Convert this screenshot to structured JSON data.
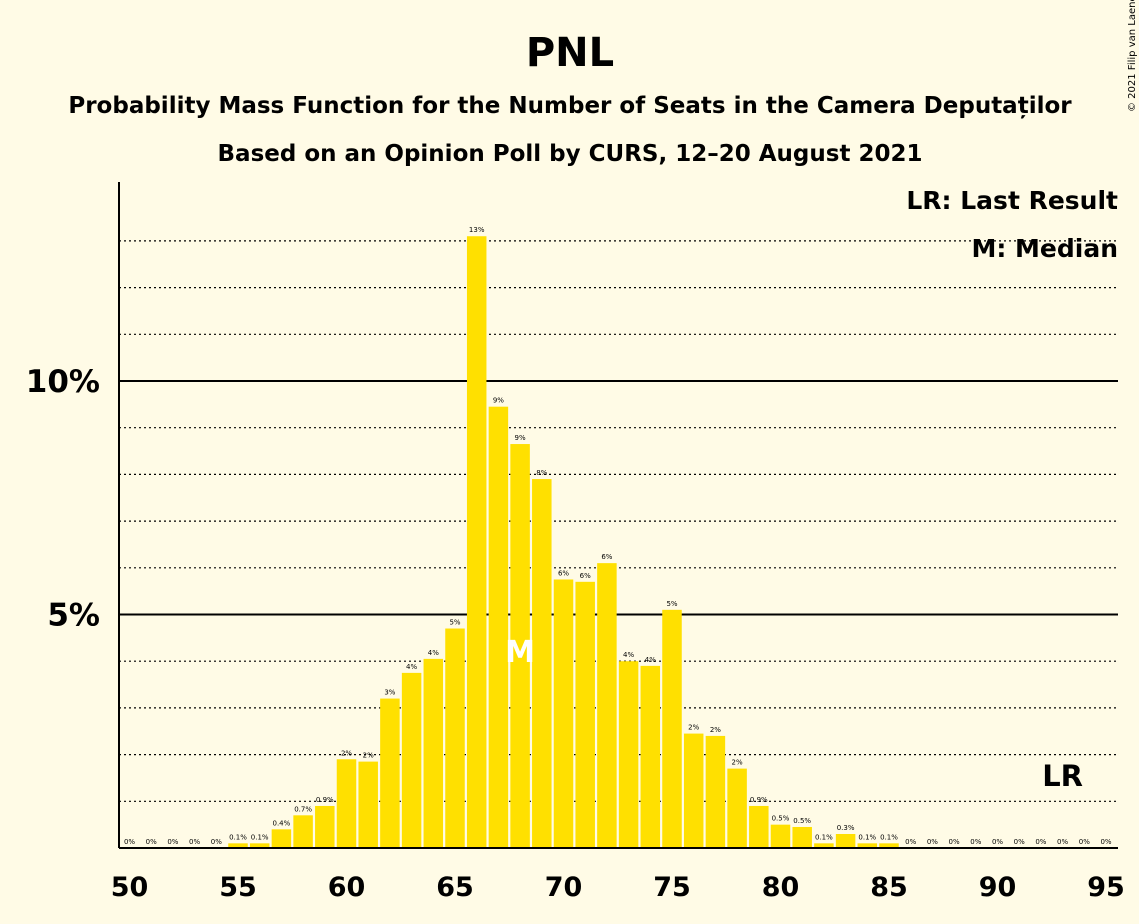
{
  "chart_data": {
    "type": "bar",
    "title": "PNL",
    "subtitle": "Probability Mass Function for the Number of Seats in the Camera Deputaților",
    "subtitle2": "Based on an Opinion Poll by CURS, 12–20 August 2021",
    "copyright": "© 2021 Filip van Laenen",
    "legend": {
      "last_result": "LR: Last Result",
      "median": "M: Median",
      "placement": "top-right"
    },
    "x": [
      50,
      51,
      52,
      53,
      54,
      55,
      56,
      57,
      58,
      59,
      60,
      61,
      62,
      63,
      64,
      65,
      66,
      67,
      68,
      69,
      70,
      71,
      72,
      73,
      74,
      75,
      76,
      77,
      78,
      79,
      80,
      81,
      82,
      83,
      84,
      85,
      86,
      87,
      88,
      89,
      90,
      91,
      92,
      93,
      94,
      95
    ],
    "values": [
      0,
      0,
      0,
      0,
      0,
      0.1,
      0.1,
      0.4,
      0.7,
      0.9,
      1.9,
      1.85,
      3.2,
      3.75,
      4.05,
      4.7,
      13.1,
      9.45,
      8.65,
      7.9,
      5.75,
      5.7,
      6.1,
      4.0,
      3.9,
      5.1,
      2.45,
      2.4,
      1.7,
      0.9,
      0.5,
      0.45,
      0.1,
      0.3,
      0.1,
      0.1,
      0,
      0,
      0,
      0,
      0,
      0,
      0,
      0,
      0,
      0
    ],
    "labels": [
      "0%",
      "0%",
      "0%",
      "0%",
      "0%",
      "0.1%",
      "0.1%",
      "0.4%",
      "0.7%",
      "0.9%",
      "2%",
      "2%",
      "3%",
      "4%",
      "4%",
      "5%",
      "13%",
      "9%",
      "9%",
      "8%",
      "6%",
      "6%",
      "6%",
      "4%",
      "4%",
      "5%",
      "2%",
      "2%",
      "2%",
      "0.9%",
      "0.5%",
      "0.5%",
      "0.1%",
      "0.3%",
      "0.1%",
      "0.1%",
      "0%",
      "0%",
      "0%",
      "0%",
      "0%",
      "0%",
      "0%",
      "0%",
      "0%",
      "0%"
    ],
    "x_ticks": [
      "50",
      "55",
      "60",
      "65",
      "70",
      "75",
      "80",
      "85",
      "90",
      "95"
    ],
    "y_ticks": [
      "5%",
      "10%"
    ],
    "ylim": [
      0,
      14
    ],
    "median_seat": 68,
    "median_marker": "M",
    "last_result_seat": 93,
    "last_result_marker": "LR",
    "grid": "dotted at every 1%, solid at 5% and 10%",
    "colors": {
      "bar": "#ffe000",
      "background": "#fffbe6",
      "axis": "#000000"
    }
  }
}
